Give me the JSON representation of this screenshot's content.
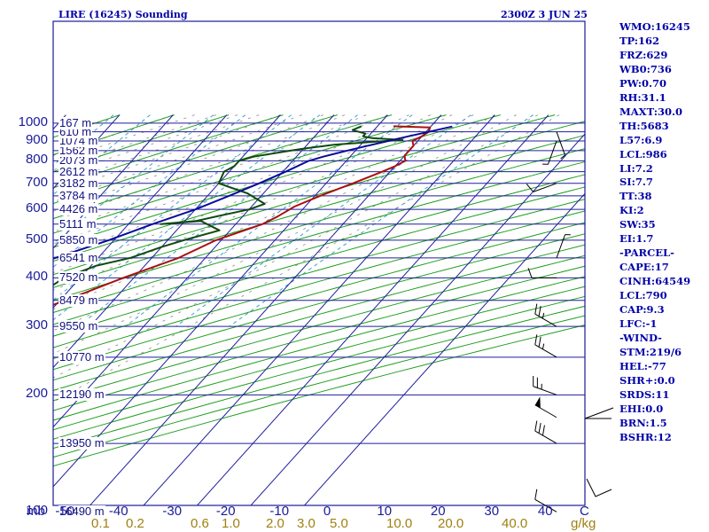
{
  "chart_data": {
    "type": "line",
    "title": "LIRE (16245) Sounding",
    "valid_time": "2300Z  3 JUN 25",
    "diagram": "skew-T log-p",
    "y_axis": {
      "scale": "log",
      "ylim_mb": [
        1050,
        100
      ],
      "label": "mb",
      "ticks": [
        "100",
        "200",
        "300",
        "400",
        "500",
        "600",
        "700",
        "800",
        "900",
        "1000"
      ],
      "tick_values": [
        100,
        200,
        300,
        400,
        500,
        600,
        700,
        800,
        900,
        1000
      ]
    },
    "x_axis": {
      "unit": "C",
      "ticks": [
        "-50",
        "-40",
        "-30",
        "-20",
        "-10",
        "0",
        "10",
        "20",
        "30",
        "40"
      ],
      "tick_values": [
        -50,
        -40,
        -30,
        -20,
        -10,
        0,
        10,
        20,
        30,
        40
      ]
    },
    "mixing_ratio_axis": {
      "unit": "g/kg",
      "ticks": [
        "0.1",
        "0.2",
        "0.6",
        "1.0",
        "2.0",
        "3.0",
        "5.0",
        "10.0",
        "20.0",
        "40.0"
      ],
      "tick_values": [
        0.1,
        0.2,
        0.6,
        1.0,
        2.0,
        3.0,
        5.0,
        10.0,
        20.0,
        40.0
      ]
    },
    "height_levels": [
      {
        "p": 100,
        "label": "16490 m"
      },
      {
        "p": 150,
        "label": "13950 m"
      },
      {
        "p": 200,
        "label": "12190 m"
      },
      {
        "p": 250,
        "label": "10770 m"
      },
      {
        "p": 300,
        "label": "9550 m"
      },
      {
        "p": 350,
        "label": "8479 m"
      },
      {
        "p": 400,
        "label": "7520 m"
      },
      {
        "p": 450,
        "label": "6541 m"
      },
      {
        "p": 500,
        "label": "5850 m"
      },
      {
        "p": 550,
        "label": "5111 m"
      },
      {
        "p": 600,
        "label": "4426 m"
      },
      {
        "p": 650,
        "label": "3784 m"
      },
      {
        "p": 700,
        "label": "3182 m"
      },
      {
        "p": 750,
        "label": "2612 m"
      },
      {
        "p": 800,
        "label": "2073 m"
      },
      {
        "p": 850,
        "label": "1562 m"
      },
      {
        "p": 900,
        "label": "1074 m"
      },
      {
        "p": 950,
        "label": "610 m"
      },
      {
        "p": 1000,
        "label": "167 m"
      }
    ],
    "series": [
      {
        "kind": "temperature",
        "color": "#aa1010",
        "points": [
          [
            982,
            13
          ],
          [
            975,
            20
          ],
          [
            950,
            20.5
          ],
          [
            925,
            20
          ],
          [
            900,
            19
          ],
          [
            875,
            20
          ],
          [
            850,
            20
          ],
          [
            825,
            20
          ],
          [
            800,
            21
          ],
          [
            775,
            20
          ],
          [
            750,
            18.5
          ],
          [
            700,
            15
          ],
          [
            650,
            11
          ],
          [
            610,
            8
          ],
          [
            575,
            6.5
          ],
          [
            550,
            5
          ],
          [
            500,
            -1
          ],
          [
            450,
            -5
          ],
          [
            400,
            -12
          ],
          [
            350,
            -19
          ],
          [
            300,
            -28
          ],
          [
            250,
            -38
          ],
          [
            205,
            -49
          ],
          [
            180,
            -56
          ],
          [
            150,
            -60
          ],
          [
            125,
            -52
          ],
          [
            100,
            -52
          ]
        ]
      },
      {
        "kind": "dewpoint",
        "color": "#0f4a0f",
        "points": [
          [
            982,
            7
          ],
          [
            960,
            6
          ],
          [
            940,
            9
          ],
          [
            925,
            9
          ],
          [
            915,
            11
          ],
          [
            905,
            17
          ],
          [
            900,
            14
          ],
          [
            880,
            5
          ],
          [
            860,
            0
          ],
          [
            850,
            -2
          ],
          [
            820,
            -8
          ],
          [
            800,
            -10
          ],
          [
            775,
            -10
          ],
          [
            750,
            -11
          ],
          [
            700,
            -10
          ],
          [
            660,
            -3
          ],
          [
            620,
            2
          ],
          [
            600,
            0
          ],
          [
            580,
            -4
          ],
          [
            560,
            -8
          ],
          [
            550,
            -14
          ],
          [
            560,
            -7
          ],
          [
            530,
            -2
          ],
          [
            500,
            -7
          ],
          [
            480,
            -10
          ],
          [
            450,
            -14
          ],
          [
            430,
            -19
          ],
          [
            400,
            -23
          ],
          [
            380,
            -24
          ],
          [
            350,
            -30
          ],
          [
            330,
            -35
          ],
          [
            320,
            -38
          ],
          [
            300,
            -36
          ],
          [
            290,
            -40
          ],
          [
            285,
            -43
          ],
          [
            270,
            -42
          ],
          [
            260,
            -45
          ],
          [
            250,
            -43
          ],
          [
            240,
            -47
          ],
          [
            230,
            -50
          ],
          [
            210,
            -55
          ],
          [
            200,
            -58
          ],
          [
            190,
            -58
          ],
          [
            180,
            -62
          ],
          [
            150,
            -64
          ],
          [
            125,
            -75
          ],
          [
            110,
            -80
          ],
          [
            100,
            -82
          ],
          [
            95,
            -83
          ]
        ]
      },
      {
        "kind": "parcel",
        "color": "#0a0a9a",
        "points": [
          [
            980,
            24
          ],
          [
            950,
            20.5
          ],
          [
            925,
            17.5
          ],
          [
            900,
            14.5
          ],
          [
            875,
            11.5
          ],
          [
            850,
            8.5
          ],
          [
            820,
            5
          ],
          [
            800,
            3
          ],
          [
            750,
            0.5
          ],
          [
            700,
            -2.5
          ],
          [
            650,
            -6
          ],
          [
            600,
            -10
          ],
          [
            550,
            -15.5
          ],
          [
            500,
            -21
          ],
          [
            450,
            -28
          ],
          [
            400,
            -35.5
          ],
          [
            350,
            -44
          ],
          [
            300,
            -54
          ],
          [
            250,
            -65
          ],
          [
            200,
            -78
          ],
          [
            150,
            -93
          ],
          [
            120,
            -105
          ]
        ]
      }
    ],
    "wind_barbs": [
      {
        "p": 100,
        "dir": 300,
        "kt": 10
      },
      {
        "p": 150,
        "dir": 300,
        "kt": 30
      },
      {
        "p": 175,
        "dir": 300,
        "kt": 50
      },
      {
        "p": 200,
        "dir": 290,
        "kt": 25
      },
      {
        "p": 250,
        "dir": 300,
        "kt": 25
      },
      {
        "p": 300,
        "dir": 300,
        "kt": 25
      },
      {
        "p": 400,
        "dir": 270,
        "kt": 10
      },
      {
        "p": 450,
        "dir": 20,
        "kt": 5
      },
      {
        "p": 700,
        "dir": 250,
        "kt": 10
      },
      {
        "p": 900,
        "dir": 200,
        "kt": 5
      },
      {
        "p": 950,
        "dir": 160,
        "kt": 5
      }
    ]
  },
  "stats": {
    "header": "WMO:16245",
    "items": [
      "TP:162",
      "FRZ:629",
      "WB0:736",
      "PW:0.70",
      "RH:31.1",
      "MAXT:30.0",
      "TH:5683",
      "L57:6.9",
      "LCL:986",
      "LI:7.2",
      "SI:7.7",
      "TT:38",
      "KI:2",
      "SW:35",
      "EI:1.7",
      "-PARCEL-",
      "CAPE:17",
      "CINH:64549",
      "LCL:790",
      "CAP:9.3",
      "LFC:-1",
      "-WIND-",
      "STM:219/6",
      "HEL:-77",
      "SHR+:0.0",
      "SRDS:11",
      "EHI:0.0",
      "BRN:1.5",
      "BSHR:12"
    ]
  },
  "colors": {
    "isobar": "#1f1f9e",
    "isotherm": "#1f1f9e",
    "dry_adiabat": "#1f9e1f",
    "moist_adiabat": "#8a8a8a",
    "mixing_ratio": "#3aa0d0",
    "temperature": "#aa1010",
    "dewpoint": "#0f4a0f",
    "parcel": "#0a0a9a",
    "border": "#1a1a9a",
    "stats_text": "#0000a8",
    "mixing_axis_text": "#a08010"
  }
}
